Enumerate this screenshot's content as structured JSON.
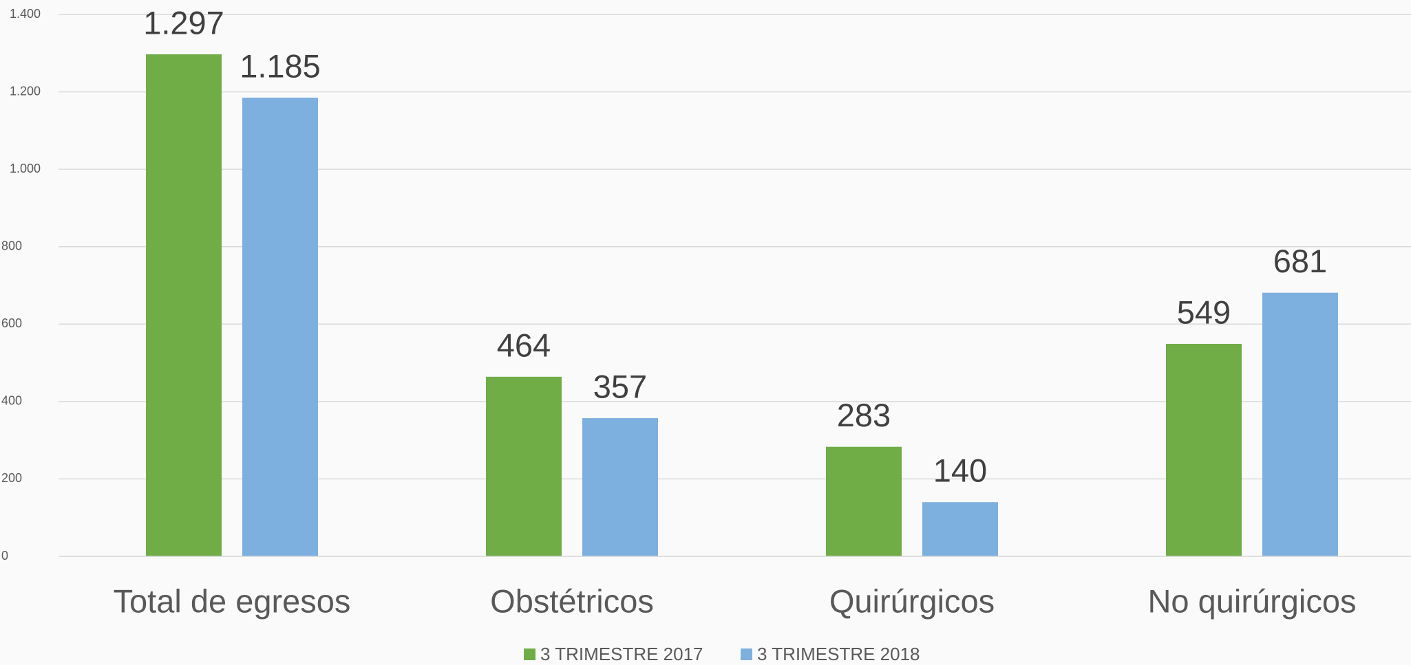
{
  "chart_data": {
    "type": "bar",
    "categories": [
      "Total de egresos",
      "Obstétricos",
      "Quirúrgicos",
      "No quirúrgicos"
    ],
    "series": [
      {
        "name": "3 TRIMESTRE 2017",
        "color": "#70ad47",
        "values": [
          1297,
          464,
          283,
          549
        ],
        "value_labels": [
          "1.297",
          "464",
          "283",
          "549"
        ]
      },
      {
        "name": "3 TRIMESTRE 2018",
        "color": "#7eb0df",
        "values": [
          1185,
          357,
          140,
          681
        ],
        "value_labels": [
          "1.185",
          "357",
          "140",
          "681"
        ]
      }
    ],
    "ylim": [
      0,
      1400
    ],
    "yticks": [
      0,
      200,
      400,
      600,
      800,
      {
        "value": 1000,
        "label": "1.000"
      },
      {
        "value": 1200,
        "label": "1.200"
      },
      {
        "value": 1400,
        "label": "1.400"
      }
    ],
    "grid": true,
    "legend": "bottom"
  }
}
